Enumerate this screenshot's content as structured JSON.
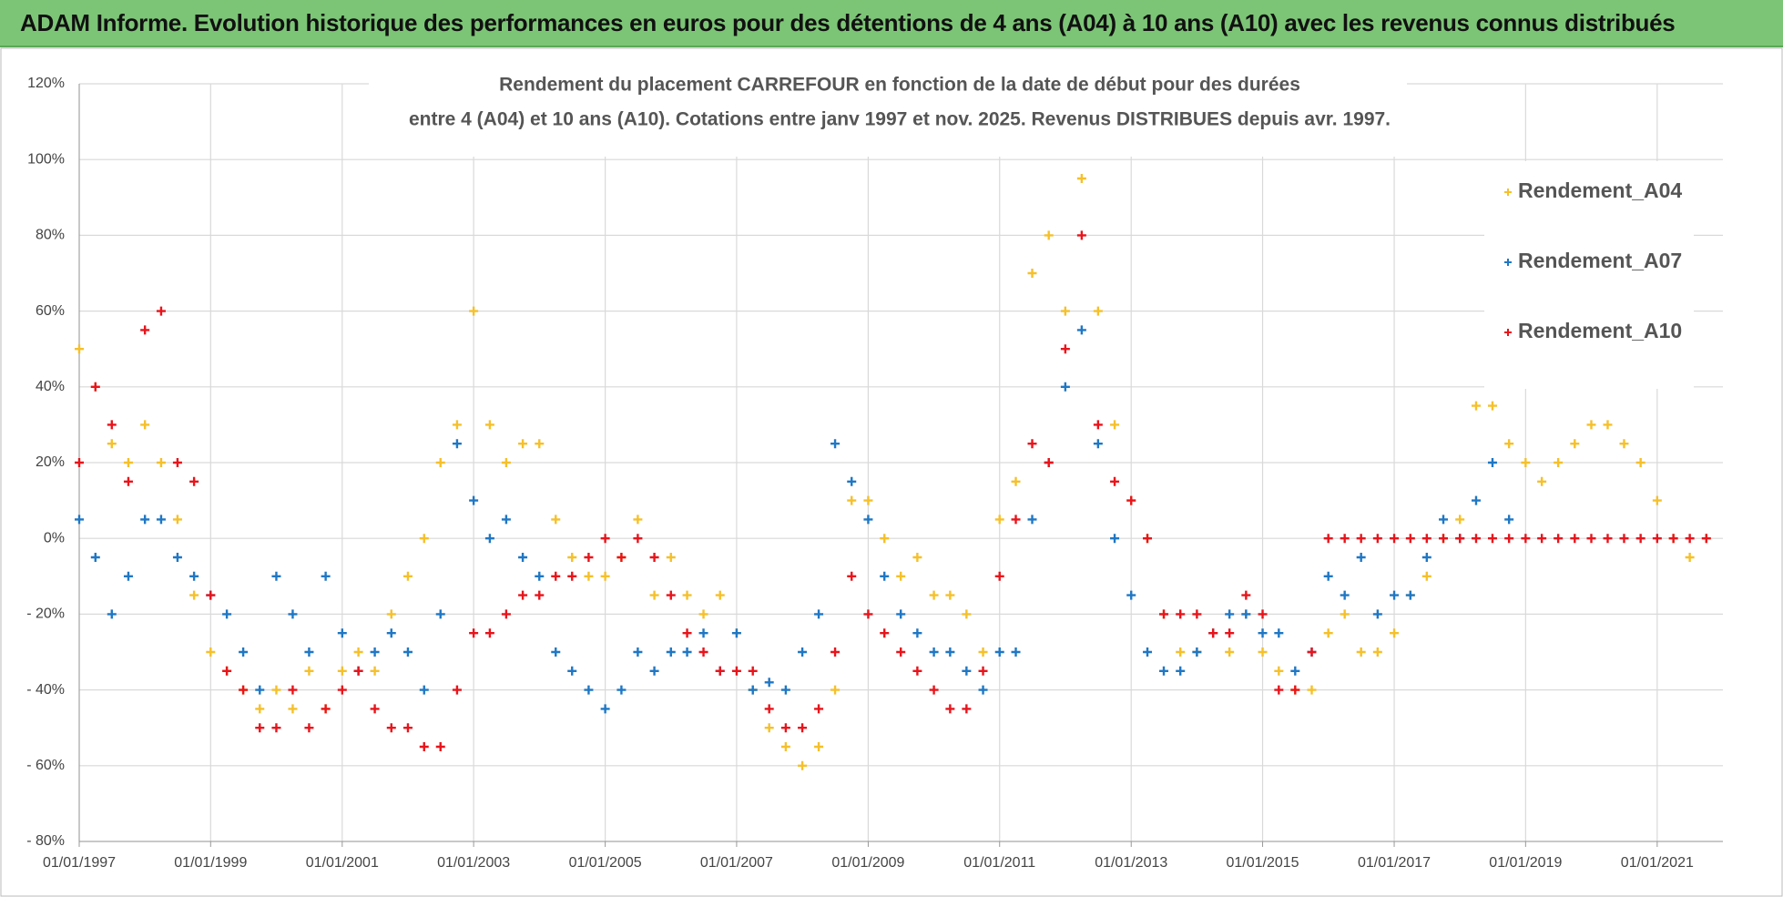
{
  "header": {
    "title": "ADAM Informe. Evolution historique des performances en euros pour des détentions de 4 ans (A04) à 10 ans (A10) avec les revenus connus distribués"
  },
  "chart_data": {
    "type": "scatter",
    "title": [
      "Rendement du placement CARREFOUR en fonction de la date de début pour des durées",
      "entre 4 (A04) et 10 ans (A10).  Cotations entre janv 1997 et nov. 2025. Revenus DISTRIBUES depuis avr. 1997."
    ],
    "x": [
      "01/01/1997",
      "01/04/1997",
      "01/07/1997",
      "01/10/1997",
      "01/01/1998",
      "01/04/1998",
      "01/07/1998",
      "01/10/1998",
      "01/01/1999",
      "01/04/1999",
      "01/07/1999",
      "01/10/1999",
      "01/01/2000",
      "01/04/2000",
      "01/07/2000",
      "01/10/2000",
      "01/01/2001",
      "01/04/2001",
      "01/07/2001",
      "01/10/2001",
      "01/01/2002",
      "01/04/2002",
      "01/07/2002",
      "01/10/2002",
      "01/01/2003",
      "01/04/2003",
      "01/07/2003",
      "01/10/2003",
      "01/01/2004",
      "01/04/2004",
      "01/07/2004",
      "01/10/2004",
      "01/01/2005",
      "01/04/2005",
      "01/07/2005",
      "01/10/2005",
      "01/01/2006",
      "01/04/2006",
      "01/07/2006",
      "01/10/2006",
      "01/01/2007",
      "01/04/2007",
      "01/07/2007",
      "01/10/2007",
      "01/01/2008",
      "01/04/2008",
      "01/07/2008",
      "01/10/2008",
      "01/01/2009",
      "01/04/2009",
      "01/07/2009",
      "01/10/2009",
      "01/01/2010",
      "01/04/2010",
      "01/07/2010",
      "01/10/2010",
      "01/01/2011",
      "01/04/2011",
      "01/07/2011",
      "01/10/2011",
      "01/01/2012",
      "01/04/2012",
      "01/07/2012",
      "01/10/2012",
      "01/01/2013",
      "01/04/2013",
      "01/07/2013",
      "01/10/2013",
      "01/01/2014",
      "01/04/2014",
      "01/07/2014",
      "01/10/2014",
      "01/01/2015",
      "01/04/2015",
      "01/07/2015",
      "01/10/2015",
      "01/01/2016",
      "01/04/2016",
      "01/07/2016",
      "01/10/2016",
      "01/01/2017",
      "01/04/2017",
      "01/07/2017",
      "01/10/2017",
      "01/01/2018",
      "01/04/2018",
      "01/07/2018",
      "01/10/2018",
      "01/01/2019",
      "01/04/2019",
      "01/07/2019",
      "01/10/2019",
      "01/01/2020",
      "01/04/2020",
      "01/07/2020",
      "01/10/2020",
      "01/01/2021",
      "01/04/2021",
      "01/07/2021",
      "01/10/2021"
    ],
    "series": [
      {
        "name": "Rendement_A04",
        "color": "#f5c02a",
        "values": [
          50,
          40,
          25,
          20,
          30,
          20,
          5,
          -15,
          -30,
          -35,
          -40,
          -45,
          -40,
          -45,
          -35,
          -45,
          -35,
          -30,
          -35,
          -20,
          -10,
          0,
          20,
          30,
          60,
          30,
          20,
          25,
          25,
          5,
          -5,
          -10,
          -10,
          -5,
          5,
          -15,
          -5,
          -15,
          -20,
          -15,
          -25,
          -40,
          -50,
          -55,
          -60,
          -55,
          -40,
          10,
          10,
          0,
          -10,
          -5,
          -15,
          -15,
          -20,
          -30,
          5,
          15,
          70,
          80,
          60,
          95,
          60,
          30,
          10,
          0,
          -20,
          -30,
          -30,
          -25,
          -30,
          -20,
          -30,
          -35,
          -40,
          -40,
          -25,
          -20,
          -30,
          -30,
          -25,
          -15,
          -10,
          0,
          5,
          35,
          35,
          25,
          20,
          15,
          20,
          25,
          30,
          30,
          25,
          20,
          10,
          0,
          -5,
          0
        ]
      },
      {
        "name": "Rendement_A07",
        "color": "#1f77c4",
        "values": [
          5,
          -5,
          -20,
          -10,
          5,
          5,
          -5,
          -10,
          -15,
          -20,
          -30,
          -40,
          -10,
          -20,
          -30,
          -10,
          -25,
          -35,
          -30,
          -25,
          -30,
          -40,
          -20,
          25,
          10,
          0,
          5,
          -5,
          -10,
          -30,
          -35,
          -40,
          -45,
          -40,
          -30,
          -35,
          -30,
          -30,
          -25,
          -35,
          -25,
          -40,
          -38,
          -40,
          -30,
          -20,
          25,
          15,
          5,
          -10,
          -20,
          -25,
          -30,
          -30,
          -35,
          -40,
          -30,
          -30,
          5,
          20,
          40,
          55,
          25,
          0,
          -15,
          -30,
          -35,
          -35,
          -30,
          -25,
          -20,
          -20,
          -25,
          -25,
          -35,
          -30,
          -10,
          -15,
          -5,
          -20,
          -15,
          -15,
          -5,
          5,
          0,
          10,
          20,
          5,
          null,
          null,
          null,
          null,
          null,
          null,
          null,
          null,
          null,
          null,
          null,
          null
        ]
      },
      {
        "name": "Rendement_A10",
        "color": "#e8141b",
        "values": [
          20,
          40,
          30,
          15,
          55,
          60,
          20,
          15,
          -15,
          -35,
          -40,
          -50,
          -50,
          -40,
          -50,
          -45,
          -40,
          -35,
          -45,
          -50,
          -50,
          -55,
          -55,
          -40,
          -25,
          -25,
          -20,
          -15,
          -15,
          -10,
          -10,
          -5,
          0,
          -5,
          0,
          -5,
          -15,
          -25,
          -30,
          -35,
          -35,
          -35,
          -45,
          -50,
          -50,
          -45,
          -30,
          -10,
          -20,
          -25,
          -30,
          -35,
          -40,
          -45,
          -45,
          -35,
          -10,
          5,
          25,
          20,
          50,
          80,
          30,
          15,
          10,
          0,
          -20,
          -20,
          -20,
          -25,
          -25,
          -15,
          -20,
          -40,
          -40,
          -30,
          0,
          0,
          0,
          0,
          0,
          0,
          0,
          0,
          0,
          0,
          0,
          0,
          0,
          0,
          0,
          0,
          0,
          0,
          0,
          0,
          0,
          0,
          0,
          0
        ]
      }
    ],
    "xlim": [
      "01/01/1997",
      "01/01/2022"
    ],
    "xticks": [
      "01/01/1997",
      "01/01/1999",
      "01/01/2001",
      "01/01/2003",
      "01/01/2005",
      "01/01/2007",
      "01/01/2009",
      "01/01/2011",
      "01/01/2013",
      "01/01/2015",
      "01/01/2017",
      "01/01/2019",
      "01/01/2021"
    ],
    "ylim": [
      -80,
      120
    ],
    "yticks": [
      {
        "value": -80,
        "label": "- 80%"
      },
      {
        "value": -60,
        "label": "- 60%"
      },
      {
        "value": -40,
        "label": "- 40%"
      },
      {
        "value": -20,
        "label": "- 20%"
      },
      {
        "value": 0,
        "label": "0%"
      },
      {
        "value": 20,
        "label": "20%"
      },
      {
        "value": 40,
        "label": "40%"
      },
      {
        "value": 60,
        "label": "60%"
      },
      {
        "value": 80,
        "label": "80%"
      },
      {
        "value": 100,
        "label": "100%"
      },
      {
        "value": 120,
        "label": "120%"
      }
    ],
    "grid": true,
    "legend": "upper right"
  }
}
